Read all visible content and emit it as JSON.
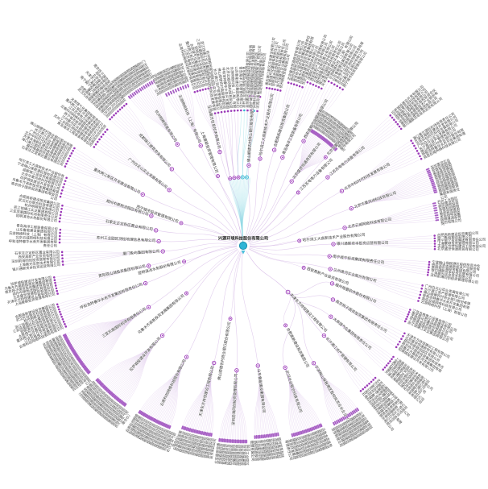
{
  "graph": {
    "center": {
      "label": "兴源环境科技股份有限公司"
    },
    "hub2": {
      "label": "天津东方持恒建设工程有限公司",
      "angle": 46,
      "r": 80
    },
    "colors": {
      "purple": "#9b3ab8",
      "capsule": "#a75fc4",
      "edge": "#bd90d8",
      "cyan": "#35b7d2",
      "cyan_edge": "#8fdbe6",
      "center_fill": "#2fb5d6",
      "center_stroke": "#1f93b2",
      "text": "#3f3f3f"
    },
    "cyan_fan": {
      "mid_r": 85,
      "leaf_r": 168,
      "mid_angles": [
        259,
        262.5,
        266,
        269.5,
        273
      ],
      "leaf_start": 258,
      "leaf_end": 276,
      "leaf_count": 14
    },
    "clusters": [
      {
        "parent": "A",
        "angle": 256,
        "midR": 120,
        "leafR": 200,
        "spread": 7,
        "n": 8,
        "style": "stack",
        "seed": 0
      },
      {
        "parent": "A",
        "angle": 247,
        "midR": 135,
        "leafR": 210,
        "spread": 8,
        "n": 10,
        "style": "dense",
        "seed": 3
      },
      {
        "parent": "A",
        "angle": 237,
        "midR": 150,
        "leafR": 232,
        "spread": 9,
        "n": 14,
        "style": "dense",
        "seed": 6
      },
      {
        "parent": "A",
        "angle": 227,
        "midR": 130,
        "leafR": 228,
        "spread": 7,
        "n": 9,
        "style": "stack",
        "seed": 9
      },
      {
        "parent": "A",
        "angle": 217,
        "midR": 115,
        "leafR": 222,
        "spread": 7,
        "n": 8,
        "style": "stack",
        "seed": 12
      },
      {
        "parent": "A",
        "angle": 207,
        "midR": 140,
        "leafR": 242,
        "spread": 6,
        "n": 8,
        "style": "stack",
        "seed": 15
      },
      {
        "parent": "A",
        "angle": 198,
        "midR": 120,
        "leafR": 235,
        "spread": 6,
        "n": 7,
        "style": "stack",
        "seed": 18
      },
      {
        "parent": "A",
        "angle": 190,
        "midR": 110,
        "leafR": 230,
        "spread": 5,
        "n": 6,
        "style": "stack",
        "seed": 21
      },
      {
        "parent": "A",
        "angle": 183,
        "midR": 105,
        "leafR": 228,
        "spread": 4,
        "n": 5,
        "style": "stack",
        "seed": 24
      },
      {
        "parent": "A",
        "angle": 176,
        "midR": 100,
        "leafR": 225,
        "spread": 4,
        "n": 5,
        "style": "stack",
        "seed": 27
      },
      {
        "parent": "A",
        "angle": 168,
        "midR": 120,
        "leafR": 238,
        "spread": 5,
        "n": 7,
        "style": "stack",
        "seed": 30
      },
      {
        "parent": "A",
        "angle": 159,
        "midR": 130,
        "leafR": 242,
        "spread": 7,
        "n": 10,
        "style": "stack",
        "seed": 33
      },
      {
        "parent": "A",
        "angle": 147,
        "midR": 140,
        "leafR": 248,
        "spread": 13,
        "n": 32,
        "style": "dense",
        "seed": 36
      },
      {
        "parent": "A",
        "angle": 132,
        "midR": 150,
        "leafR": 246,
        "spread": 11,
        "n": 26,
        "style": "dense",
        "seed": 39
      },
      {
        "parent": "A",
        "angle": 117,
        "midR": 155,
        "leafR": 243,
        "spread": 10,
        "n": 24,
        "style": "dense",
        "seed": 1
      },
      {
        "parent": "A",
        "angle": 104,
        "midR": 150,
        "leafR": 238,
        "spread": 9,
        "n": 20,
        "style": "dense",
        "seed": 4
      },
      {
        "parent": "A",
        "angle": 93,
        "midR": 155,
        "leafR": 243,
        "spread": 8,
        "n": 18,
        "style": "dense",
        "seed": 7
      },
      {
        "parent": "A",
        "angle": 83,
        "midR": 150,
        "leafR": 238,
        "spread": 7,
        "n": 15,
        "style": "dense",
        "seed": 10
      },
      {
        "parent": "B",
        "angle": 71,
        "midR": 160,
        "leafR": 243,
        "spread": 9,
        "n": 20,
        "style": "dense",
        "seed": 13
      },
      {
        "parent": "B",
        "angle": 59,
        "midR": 170,
        "leafR": 248,
        "spread": 8,
        "n": 16,
        "style": "dense",
        "seed": 16
      },
      {
        "parent": "B",
        "angle": 48,
        "midR": 150,
        "leafR": 232,
        "spread": 6,
        "n": 8,
        "style": "stack",
        "seed": 19
      },
      {
        "parent": "B",
        "angle": 39,
        "midR": 140,
        "leafR": 232,
        "spread": 5,
        "n": 7,
        "style": "stack",
        "seed": 22
      },
      {
        "parent": "B",
        "angle": 31,
        "midR": 130,
        "leafR": 228,
        "spread": 5,
        "n": 6,
        "style": "stack",
        "seed": 25
      },
      {
        "parent": "B",
        "angle": 23,
        "midR": 120,
        "leafR": 222,
        "spread": 4,
        "n": 6,
        "style": "stack",
        "seed": 28
      },
      {
        "parent": "A",
        "angle": 15,
        "midR": 112,
        "leafR": 228,
        "spread": 5,
        "n": 6,
        "style": "stack",
        "seed": 31
      },
      {
        "parent": "A",
        "angle": 7,
        "midR": 108,
        "leafR": 232,
        "spread": 4,
        "n": 6,
        "style": "stack",
        "seed": 34
      },
      {
        "parent": "A",
        "angle": -1,
        "midR": 112,
        "leafR": 238,
        "spread": 4,
        "n": 6,
        "style": "stack",
        "seed": 37
      },
      {
        "parent": "A",
        "angle": -10,
        "midR": 128,
        "leafR": 243,
        "spread": 5,
        "n": 8,
        "style": "dense",
        "seed": 40
      },
      {
        "parent": "A",
        "angle": -19,
        "midR": 142,
        "leafR": 248,
        "spread": 7,
        "n": 14,
        "style": "dense",
        "seed": 2
      },
      {
        "parent": "A",
        "angle": -29,
        "midR": 140,
        "leafR": 246,
        "spread": 6,
        "n": 8,
        "style": "stack",
        "seed": 5
      },
      {
        "parent": "A",
        "angle": -39,
        "midR": 135,
        "leafR": 244,
        "spread": 5,
        "n": 7,
        "style": "stack",
        "seed": 8
      },
      {
        "parent": "A",
        "angle": -53,
        "midR": 100,
        "leafR": 166,
        "spread": 14,
        "n": 24,
        "style": "dense",
        "seed": 11
      },
      {
        "parent": "A",
        "angle": -60,
        "midR": 150,
        "leafR": 230,
        "spread": 5,
        "n": 6,
        "style": "stack",
        "seed": 14
      },
      {
        "parent": "A",
        "angle": -66,
        "midR": 120,
        "leafR": 218,
        "spread": 5,
        "n": 6,
        "style": "stack",
        "seed": 17
      },
      {
        "parent": "A",
        "angle": -72,
        "midR": 125,
        "leafR": 210,
        "spread": 5,
        "n": 6,
        "style": "stack",
        "seed": 20
      },
      {
        "parent": "A",
        "angle": -79,
        "midR": 110,
        "leafR": 198,
        "spread": 5,
        "n": 6,
        "style": "stack",
        "seed": 23
      },
      {
        "parent": "A",
        "angle": -86,
        "midR": 100,
        "leafR": 186,
        "spread": 5,
        "n": 7,
        "style": "stack",
        "seed": 26
      }
    ],
    "singles": [
      {
        "parent": "A",
        "angle": -47,
        "r": 150,
        "seed": 2
      },
      {
        "parent": "A",
        "angle": -44,
        "r": 95,
        "seed": 8
      },
      {
        "parent": "A",
        "angle": 20,
        "r": 80,
        "seed": 14
      },
      {
        "parent": "B",
        "angle": 62,
        "r": 112,
        "seed": 20
      },
      {
        "parent": "A",
        "angle": 100,
        "r": 92,
        "seed": 26
      },
      {
        "parent": "A",
        "angle": 140,
        "r": 92,
        "seed": 32
      },
      {
        "parent": "A",
        "angle": 200,
        "r": 82,
        "seed": 38
      },
      {
        "parent": "A",
        "angle": 250,
        "r": 92,
        "seed": 41
      },
      {
        "parent": "A",
        "angle": -5,
        "r": 70,
        "seed": 23
      },
      {
        "parent": "A",
        "angle": 165,
        "r": 76,
        "seed": 29
      }
    ],
    "name_pool": [
      "上海晨光信息技术有限公司",
      "云南科创网络科技股份有限公司",
      "北京华夏风尚科技有限公司",
      "云游网络科技（上海）有限公司",
      "天津东方持恒建设工程有限公司",
      "北京中科时代科技发展有限公司",
      "杭州明辉贸易有限公司",
      "深圳前海同创投资管理有限公司",
      "江苏苏电电力设备有限公司",
      "成都锦江建筑劳务有限公司",
      "山东鲁能建设集团有限公司",
      "北京盛世恒通商贸有限公司",
      "广州白云山实业发展有限公司",
      "武汉光谷联合科技有限公司",
      "西安高新产业投资有限公司",
      "重庆两江新区开发建设有限公司",
      "宁波梅山保税港区股权投资合伙企业（有限合伙）",
      "青岛海洋工程装备有限公司",
      "郑州中原物流园区有限公司",
      "长沙湘江资产管理有限公司",
      "合肥高新建设投资集团公司",
      "石家庄正定新区置业有限公司",
      "太原煤气化集团有限责任公司",
      "哈尔滨工大高新技术产业股份有限公司",
      "苏州工业园区测绘地理信息有限公司",
      "南京扬子国资投资集团有限责任公司",
      "佛山顺德农村商业银行股份有限公司",
      "厦门象屿集团有限公司",
      "福州榕基软件股份有限公司",
      "昆明滇池水务股份有限公司",
      "贵阳观山湖投资集团有限公司",
      "兰州黄河实业股份有限公司",
      "乌鲁木齐高新投资发展集团有限公司",
      "呼和浩特春华水务开发集团有限责任公司",
      "南宁威宁投资集团有限责任公司",
      "海口美兰国际机场有限责任公司",
      "三亚凤凰国际机场有限责任公司",
      "银川通联资本投资运营有限公司",
      "西宁城市投资管理有限公司",
      "拉萨城投建设开发有限公司",
      "北京云威网络科技有限公司",
      "上海豪颖投资管理有限公司",
      "天津滨海新区建设开发有限公司",
      "浙江钱塘江实业集团有限公司"
    ]
  }
}
